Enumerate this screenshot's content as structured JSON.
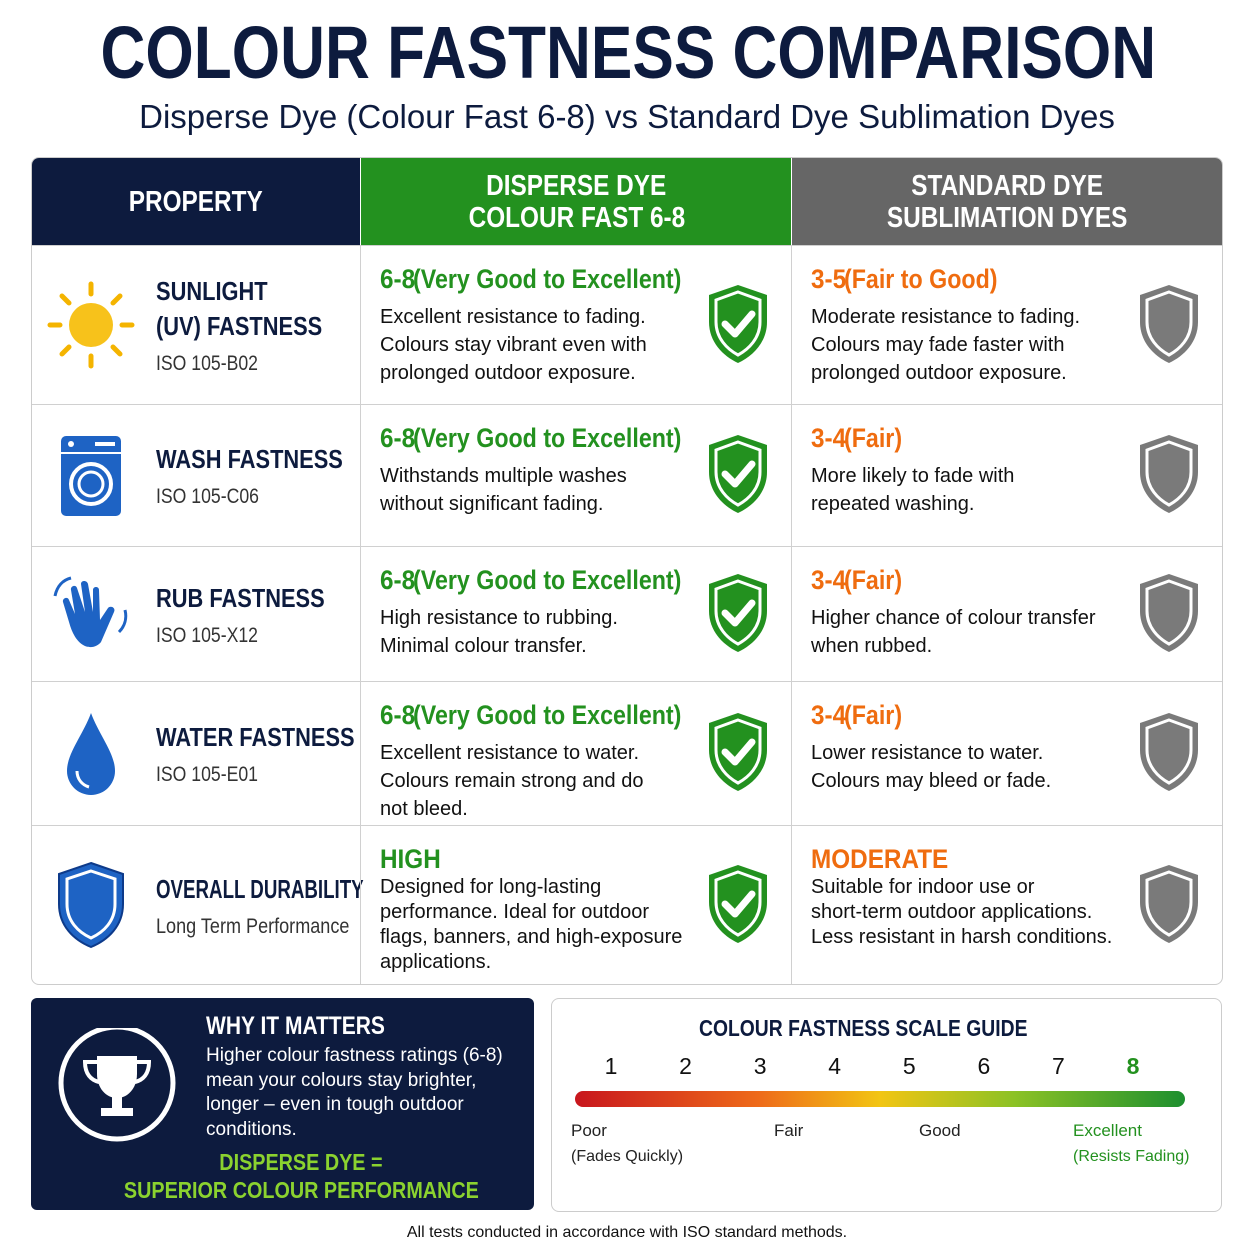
{
  "header": {
    "title": "COLOUR FASTNESS COMPARISON",
    "subtitle": "Disperse Dye (Colour Fast 6-8) vs Standard Dye Sublimation Dyes"
  },
  "table": {
    "columns": [
      [
        "PROPERTY"
      ],
      [
        "DISPERSE DYE",
        "COLOUR FAST 6-8"
      ],
      [
        "STANDARD DYE",
        "SUBLIMATION DYES"
      ]
    ],
    "rows": [
      {
        "name": [
          "SUNLIGHT",
          "(UV) FASTNESS"
        ],
        "code": "ISO 105-B02",
        "disperse": {
          "rating": "6-8",
          "grade": "(Very Good to Excellent)",
          "lines": [
            "Excellent resistance to fading.",
            "Colours stay vibrant even with",
            "prolonged outdoor exposure."
          ]
        },
        "standard": {
          "rating": "3-5",
          "grade": "(Fair to Good)",
          "lines": [
            "Moderate resistance to fading.",
            "Colours may fade faster with",
            "prolonged outdoor exposure."
          ]
        }
      },
      {
        "name": [
          "WASH FASTNESS"
        ],
        "code": "ISO 105-C06",
        "disperse": {
          "rating": "6-8",
          "grade": "(Very Good to Excellent)",
          "lines": [
            "Withstands multiple washes",
            "without significant fading."
          ]
        },
        "standard": {
          "rating": "3-4",
          "grade": "(Fair)",
          "lines": [
            "More likely to fade with",
            "repeated washing."
          ]
        }
      },
      {
        "name": [
          "RUB FASTNESS"
        ],
        "code": "ISO 105-X12",
        "disperse": {
          "rating": "6-8",
          "grade": "(Very Good to Excellent)",
          "lines": [
            "High resistance to rubbing.",
            "Minimal colour transfer."
          ]
        },
        "standard": {
          "rating": "3-4",
          "grade": "(Fair)",
          "lines": [
            "Higher chance of colour transfer",
            "when rubbed."
          ]
        }
      },
      {
        "name": [
          "WATER FASTNESS"
        ],
        "code": "ISO 105-E01",
        "disperse": {
          "rating": "6-8",
          "grade": "(Very Good to Excellent)",
          "lines": [
            "Excellent resistance to water.",
            "Colours remain strong and do",
            "not bleed."
          ]
        },
        "standard": {
          "rating": "3-4",
          "grade": "(Fair)",
          "lines": [
            "Lower resistance to water.",
            "Colours may bleed or fade."
          ]
        }
      },
      {
        "name": [
          "OVERALL DURABILITY"
        ],
        "code": "Long Term Performance",
        "disperse": {
          "rating": "HIGH",
          "lines": [
            "Designed for long-lasting",
            "performance. Ideal for outdoor",
            "flags, banners, and high-exposure",
            "applications."
          ]
        },
        "standard": {
          "rating": "MODERATE",
          "lines": [
            "Suitable for indoor use or",
            "short-term outdoor applications.",
            "Less resistant in harsh conditions."
          ]
        }
      }
    ]
  },
  "why": {
    "title": "WHY IT MATTERS",
    "lines": [
      "Higher colour fastness ratings (6-8)",
      "mean your colours stay brighter,",
      "longer – even in tough outdoor",
      "conditions."
    ],
    "tagline": [
      "DISPERSE DYE =",
      "SUPERIOR COLOUR PERFORMANCE"
    ]
  },
  "scale": {
    "title": "COLOUR FASTNESS SCALE GUIDE",
    "numbers": [
      1,
      2,
      3,
      4,
      5,
      6,
      7,
      8
    ],
    "labels": [
      {
        "text": "Poor",
        "sub": "(Fades Quickly)"
      },
      {
        "text": "Fair"
      },
      {
        "text": "Good"
      },
      {
        "text": "Excellent",
        "sub": "(Resists Fading)"
      }
    ]
  },
  "footer": "All tests conducted in accordance with ISO standard methods."
}
